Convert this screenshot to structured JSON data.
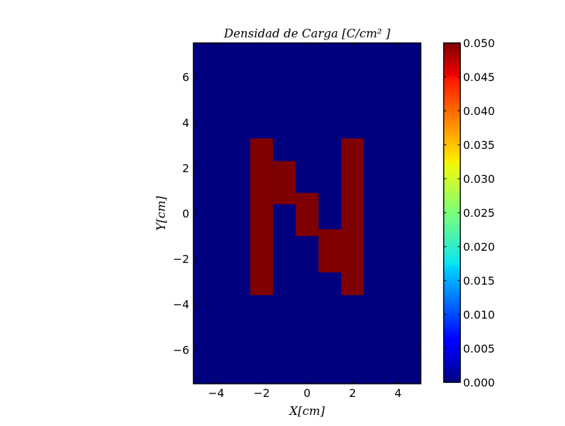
{
  "chart_data": {
    "type": "heatmap",
    "title": "Densidad de Carga [C/cm² ]",
    "xlabel": "X[cm]",
    "ylabel": "Y[cm]",
    "xlim": [
      -5,
      5
    ],
    "ylim": [
      -7.5,
      7.5
    ],
    "x_ticks": [
      -4,
      -2,
      0,
      2,
      4
    ],
    "x_tick_labels": [
      "−4",
      "−2",
      "0",
      "2",
      "4"
    ],
    "y_ticks": [
      6,
      4,
      2,
      0,
      -2,
      -4,
      -6
    ],
    "y_tick_labels": [
      "6",
      "4",
      "2",
      "0",
      "−2",
      "−4",
      "−6"
    ],
    "grid": false,
    "colormap": "jet",
    "background_value": 0.0,
    "background_color": "#00007f",
    "cell_value": 0.05,
    "cell_color": "#7f0000",
    "cells": [
      {
        "x": [
          -2.5,
          -1.5
        ],
        "y": [
          -3.6,
          3.3
        ],
        "value": 0.05
      },
      {
        "x": [
          -1.5,
          -0.5
        ],
        "y": [
          0.4,
          2.3
        ],
        "value": 0.05
      },
      {
        "x": [
          -0.5,
          0.5
        ],
        "y": [
          -1.0,
          0.9
        ],
        "value": 0.05
      },
      {
        "x": [
          0.5,
          1.5
        ],
        "y": [
          -2.6,
          -0.7
        ],
        "value": 0.05
      },
      {
        "x": [
          1.5,
          2.5
        ],
        "y": [
          -3.6,
          3.3
        ],
        "value": 0.05
      }
    ],
    "colorbar": {
      "min": 0.0,
      "max": 0.05,
      "ticks": [
        0.0,
        0.005,
        0.01,
        0.015,
        0.02,
        0.025,
        0.03,
        0.035,
        0.04,
        0.045,
        0.05
      ],
      "tick_labels": [
        "0.000",
        "0.005",
        "0.010",
        "0.015",
        "0.020",
        "0.025",
        "0.030",
        "0.035",
        "0.040",
        "0.045",
        "0.050"
      ]
    }
  }
}
